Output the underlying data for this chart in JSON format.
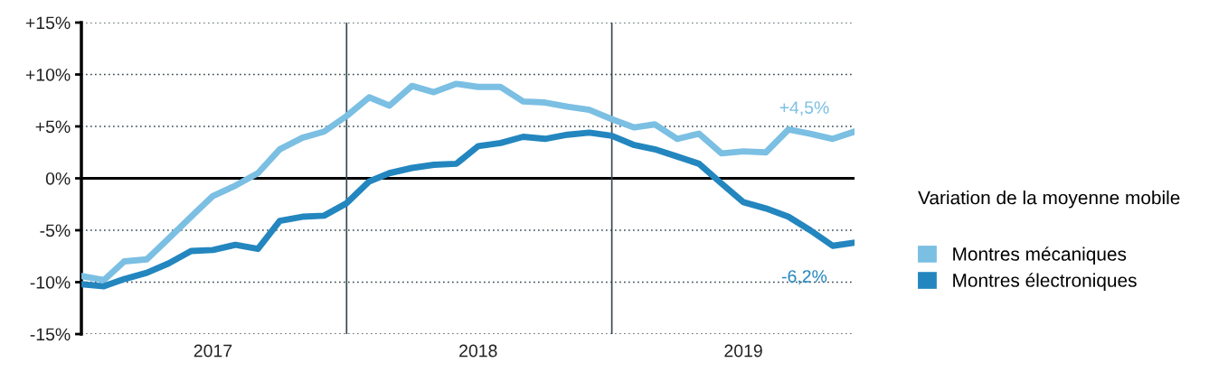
{
  "chart_data": {
    "type": "line",
    "legend_title": "Variation de la moyenne mobile",
    "legend": "right",
    "grid": "y",
    "line_style": "solid",
    "marker": "none",
    "x": [
      "2017-01",
      "2017-02",
      "2017-03",
      "2017-04",
      "2017-05",
      "2017-06",
      "2017-07",
      "2017-08",
      "2017-09",
      "2017-10",
      "2017-11",
      "2017-12",
      "2018-01",
      "2018-02",
      "2018-03",
      "2018-04",
      "2018-05",
      "2018-06",
      "2018-07",
      "2018-08",
      "2018-09",
      "2018-10",
      "2018-11",
      "2018-12",
      "2019-01",
      "2019-02",
      "2019-03",
      "2019-04",
      "2019-05",
      "2019-06",
      "2019-07",
      "2019-08",
      "2019-09",
      "2019-10",
      "2019-11",
      "2019-12"
    ],
    "series": [
      {
        "name": "Montres mécaniques",
        "color": "#7bbfe3",
        "values": [
          -9.4,
          -9.8,
          -8.0,
          -7.8,
          -5.8,
          -3.7,
          -1.7,
          -0.7,
          0.5,
          2.8,
          3.9,
          4.5,
          6.0,
          7.8,
          7.0,
          8.9,
          8.3,
          9.1,
          8.8,
          8.8,
          7.4,
          7.3,
          6.9,
          6.6,
          5.7,
          4.9,
          5.2,
          3.8,
          4.3,
          2.4,
          2.6,
          2.5,
          4.7,
          4.3,
          3.8,
          4.5
        ]
      },
      {
        "name": "Montres électroniques",
        "color": "#2386bf",
        "values": [
          -10.2,
          -10.4,
          -9.7,
          -9.1,
          -8.2,
          -7.0,
          -6.9,
          -6.4,
          -6.8,
          -4.1,
          -3.7,
          -3.6,
          -2.4,
          -0.3,
          0.5,
          1.0,
          1.3,
          1.4,
          3.1,
          3.4,
          4.0,
          3.8,
          4.2,
          4.4,
          4.1,
          3.2,
          2.8,
          2.1,
          1.4,
          -0.5,
          -2.3,
          -2.9,
          -3.7,
          -5.0,
          -6.5,
          -6.2
        ]
      }
    ],
    "xlim": [
      "2017-01",
      "2019-12"
    ],
    "xticks": [
      {
        "value": "2017-07",
        "label": "2017"
      },
      {
        "value": "2018-07",
        "label": "2018"
      },
      {
        "value": "2019-07",
        "label": "2019"
      }
    ],
    "ylim": [
      -15,
      15
    ],
    "yticks": [
      {
        "value": -15,
        "label": "-15%"
      },
      {
        "value": -10,
        "label": "-10%"
      },
      {
        "value": -5,
        "label": "-5%"
      },
      {
        "value": 0,
        "label": "0%"
      },
      {
        "value": 5,
        "label": "+5%"
      },
      {
        "value": 10,
        "label": "+10%"
      },
      {
        "value": 15,
        "label": "+15%"
      }
    ],
    "ref_lines": [
      {
        "axis": "y",
        "value": 0,
        "color": "#000000"
      },
      {
        "axis": "x",
        "value": "2018-01",
        "color": "#37474f"
      },
      {
        "axis": "x",
        "value": "2019-01",
        "color": "#37474f"
      }
    ],
    "annotations": [
      {
        "text": "+4,5%",
        "x": "2019-12",
        "y": 4.5
      },
      {
        "text": "-6,2%",
        "x": "2019-12",
        "y": -6.2
      }
    ]
  }
}
